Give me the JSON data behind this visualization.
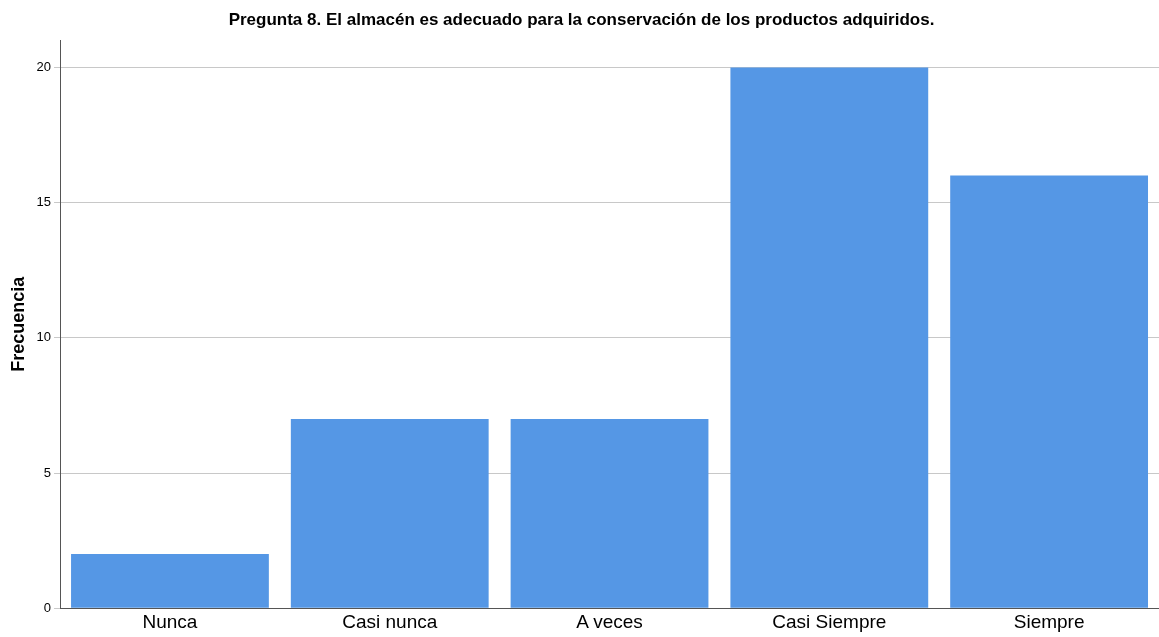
{
  "chart_data": {
    "type": "bar",
    "title": "Pregunta 8. El almacén es adecuado para la conservación de los productos adquiridos.",
    "ylabel": "Frecuencia",
    "categories": [
      "Nunca",
      "Casi nunca",
      "A veces",
      "Casi Siempre",
      "Siempre"
    ],
    "values": [
      2,
      7,
      7,
      20,
      16
    ],
    "color": "#5597e5",
    "ylim": [
      0,
      21
    ],
    "yticks": [
      0,
      5,
      10,
      15,
      20
    ],
    "grid": "y"
  }
}
